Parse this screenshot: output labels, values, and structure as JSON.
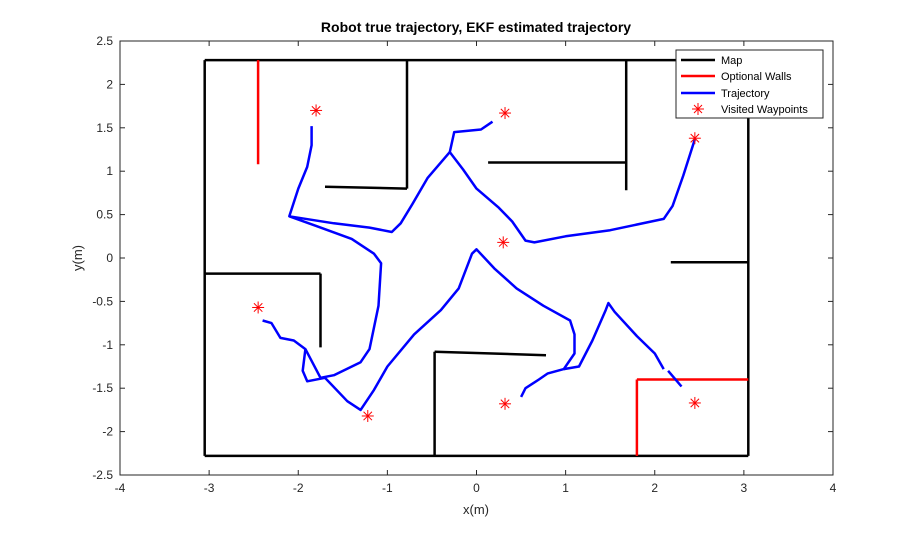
{
  "chart_data": {
    "type": "line",
    "title": "Robot true trajectory, EKF estimated trajectory",
    "xlabel": "x(m)",
    "ylabel": "y(m)",
    "xlim": [
      -4,
      4
    ],
    "ylim": [
      -2.5,
      2.5
    ],
    "xticks": [
      "-4",
      "-3",
      "-2",
      "-1",
      "0",
      "1",
      "2",
      "3",
      "4"
    ],
    "yticks": [
      "2.5",
      "2",
      "1.5",
      "1",
      "0.5",
      "0",
      "-0.5",
      "-1",
      "-1.5",
      "-2",
      "-2.5"
    ],
    "grid": false,
    "legend_position": "top-right",
    "legend": [
      "Map",
      "Optional Walls",
      "Trajectory",
      "Visited Waypoints"
    ],
    "colors": {
      "map": "#000000",
      "optional_walls": "#ff0000",
      "trajectory": "#0000ff",
      "waypoints": "#ff0000"
    },
    "series": [
      {
        "name": "Map",
        "segments": [
          [
            [
              -3.05,
              2.28
            ],
            [
              3.05,
              2.28
            ]
          ],
          [
            [
              -3.05,
              2.28
            ],
            [
              -3.05,
              -2.28
            ]
          ],
          [
            [
              -3.05,
              -2.28
            ],
            [
              3.05,
              -2.28
            ]
          ],
          [
            [
              3.05,
              2.28
            ],
            [
              3.05,
              -2.28
            ]
          ],
          [
            [
              -0.78,
              2.28
            ],
            [
              -0.78,
              0.8
            ]
          ],
          [
            [
              -1.7,
              0.82
            ],
            [
              -0.78,
              0.8
            ]
          ],
          [
            [
              1.68,
              2.28
            ],
            [
              1.68,
              0.78
            ]
          ],
          [
            [
              0.13,
              1.1
            ],
            [
              1.68,
              1.1
            ]
          ],
          [
            [
              2.18,
              -0.05
            ],
            [
              3.05,
              -0.05
            ]
          ],
          [
            [
              -3.05,
              -0.18
            ],
            [
              -1.75,
              -0.18
            ]
          ],
          [
            [
              -1.75,
              -0.18
            ],
            [
              -1.75,
              -1.03
            ]
          ],
          [
            [
              -0.47,
              -1.08
            ],
            [
              -0.47,
              -2.28
            ]
          ],
          [
            [
              -0.47,
              -1.08
            ],
            [
              0.78,
              -1.12
            ]
          ]
        ]
      },
      {
        "name": "Optional Walls",
        "segments": [
          [
            [
              -2.45,
              2.28
            ],
            [
              -2.45,
              1.08
            ]
          ],
          [
            [
              1.8,
              -1.4
            ],
            [
              3.05,
              -1.4
            ]
          ],
          [
            [
              1.8,
              -1.4
            ],
            [
              1.8,
              -2.28
            ]
          ]
        ]
      },
      {
        "name": "Trajectory",
        "segments": [
          [
            [
              0.18,
              1.57
            ],
            [
              0.05,
              1.48
            ],
            [
              -0.25,
              1.45
            ],
            [
              -0.3,
              1.22
            ],
            [
              -0.15,
              1.02
            ],
            [
              0.0,
              0.8
            ],
            [
              0.25,
              0.58
            ],
            [
              0.4,
              0.42
            ],
            [
              0.55,
              0.2
            ],
            [
              0.65,
              0.18
            ],
            [
              1.0,
              0.25
            ],
            [
              1.5,
              0.32
            ],
            [
              2.1,
              0.45
            ],
            [
              2.2,
              0.6
            ],
            [
              2.32,
              0.95
            ],
            [
              2.45,
              1.37
            ]
          ],
          [
            [
              -0.3,
              1.22
            ],
            [
              -0.55,
              0.92
            ],
            [
              -0.72,
              0.62
            ],
            [
              -0.85,
              0.4
            ],
            [
              -0.95,
              0.3
            ],
            [
              -1.2,
              0.35
            ],
            [
              -1.6,
              0.4
            ],
            [
              -2.1,
              0.48
            ],
            [
              -2.0,
              0.8
            ],
            [
              -1.9,
              1.05
            ],
            [
              -1.85,
              1.3
            ],
            [
              -1.85,
              1.52
            ]
          ],
          [
            [
              -2.1,
              0.48
            ],
            [
              -1.8,
              0.37
            ],
            [
              -1.4,
              0.22
            ],
            [
              -1.15,
              0.05
            ],
            [
              -1.07,
              -0.06
            ],
            [
              -1.1,
              -0.55
            ],
            [
              -1.2,
              -1.05
            ],
            [
              -1.3,
              -1.2
            ],
            [
              -1.6,
              -1.35
            ],
            [
              -1.75,
              -1.38
            ],
            [
              -1.92,
              -1.05
            ],
            [
              -2.05,
              -0.95
            ],
            [
              -2.2,
              -0.92
            ],
            [
              -2.3,
              -0.75
            ],
            [
              -2.4,
              -0.72
            ]
          ],
          [
            [
              -1.92,
              -1.05
            ],
            [
              -1.95,
              -1.3
            ],
            [
              -1.9,
              -1.42
            ],
            [
              -1.7,
              -1.38
            ],
            [
              -1.45,
              -1.65
            ],
            [
              -1.3,
              -1.75
            ],
            [
              -1.15,
              -1.52
            ],
            [
              -1.0,
              -1.25
            ],
            [
              -0.7,
              -0.88
            ],
            [
              -0.4,
              -0.6
            ],
            [
              -0.2,
              -0.35
            ],
            [
              -0.05,
              0.05
            ],
            [
              0.0,
              0.1
            ],
            [
              0.2,
              -0.12
            ],
            [
              0.45,
              -0.35
            ],
            [
              0.75,
              -0.55
            ],
            [
              1.05,
              -0.72
            ],
            [
              1.1,
              -0.88
            ],
            [
              1.1,
              -1.1
            ],
            [
              0.98,
              -1.28
            ],
            [
              0.8,
              -1.33
            ],
            [
              0.7,
              -1.4
            ],
            [
              0.55,
              -1.5
            ],
            [
              0.5,
              -1.6
            ]
          ],
          [
            [
              0.98,
              -1.28
            ],
            [
              1.15,
              -1.25
            ],
            [
              1.3,
              -0.95
            ],
            [
              1.45,
              -0.6
            ],
            [
              1.48,
              -0.52
            ],
            [
              1.55,
              -0.62
            ],
            [
              1.8,
              -0.9
            ],
            [
              2.0,
              -1.1
            ],
            [
              2.1,
              -1.28
            ]
          ],
          [
            [
              2.15,
              -1.3
            ],
            [
              2.3,
              -1.48
            ]
          ]
        ]
      }
    ],
    "waypoints": [
      [
        -1.8,
        1.7
      ],
      [
        0.32,
        1.67
      ],
      [
        2.45,
        1.38
      ],
      [
        0.3,
        0.18
      ],
      [
        -2.45,
        -0.57
      ],
      [
        -1.22,
        -1.82
      ],
      [
        0.32,
        -1.68
      ],
      [
        2.45,
        -1.67
      ]
    ]
  }
}
